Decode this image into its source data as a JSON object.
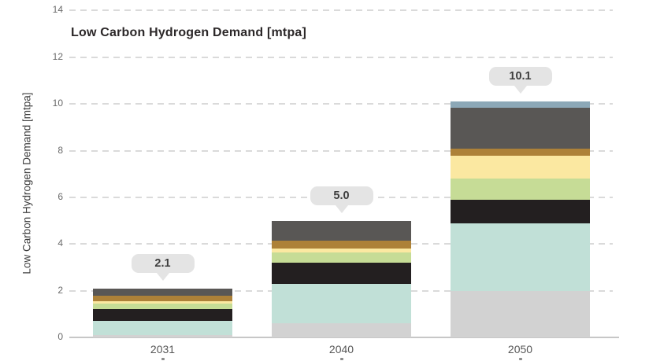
{
  "title": "Low Carbon Hydrogen Demand [mtpa]",
  "y_axis": {
    "label": "Low Carbon Hydrogen Demand [mtpa]",
    "ticks": [
      "0",
      "2",
      "4",
      "6",
      "8",
      "10",
      "12",
      "14"
    ]
  },
  "x_axis": {
    "labels": [
      "2031",
      "2040",
      "2050"
    ]
  },
  "chart_data": {
    "type": "bar",
    "stacked": true,
    "title": "Low Carbon Hydrogen Demand [mtpa]",
    "xlabel": "",
    "ylabel": "Low Carbon Hydrogen Demand [mtpa]",
    "ylim": [
      0,
      14
    ],
    "grid": "dashed-horizontal",
    "legend": "none",
    "categories": [
      "2031",
      "2040",
      "2050"
    ],
    "totals_labels": [
      "2.1",
      "5.0",
      "10.1"
    ],
    "totals": [
      2.1,
      5.0,
      10.1
    ],
    "series": [
      {
        "name": "segment-light-gray",
        "color": "#d2d2d2",
        "values": [
          0.1,
          0.6,
          2.0
        ]
      },
      {
        "name": "segment-mint",
        "color": "#c1e0d7",
        "values": [
          0.6,
          1.7,
          2.9
        ]
      },
      {
        "name": "segment-black",
        "color": "#231f20",
        "values": [
          0.5,
          0.9,
          1.0
        ]
      },
      {
        "name": "segment-light-green",
        "color": "#c6dc96",
        "values": [
          0.25,
          0.45,
          0.9
        ]
      },
      {
        "name": "segment-pale-yellow",
        "color": "#fbe8a1",
        "values": [
          0.1,
          0.15,
          1.0
        ]
      },
      {
        "name": "segment-ochre",
        "color": "#ad8138",
        "values": [
          0.25,
          0.35,
          0.3
        ]
      },
      {
        "name": "segment-dark-gray",
        "color": "#595755",
        "values": [
          0.3,
          0.85,
          1.75
        ]
      },
      {
        "name": "segment-steel-blue",
        "color": "#8ca8b7",
        "values": [
          0.0,
          0.0,
          0.25
        ]
      }
    ]
  },
  "colors": {
    "background": "#ffffff",
    "gridline": "#dadada",
    "axis_line": "#c7c7c7",
    "tick_label": "#6a6a6a",
    "title_text": "#2b2728",
    "callout_bg": "#e4e4e4",
    "callout_text": "#3e3e3e"
  }
}
